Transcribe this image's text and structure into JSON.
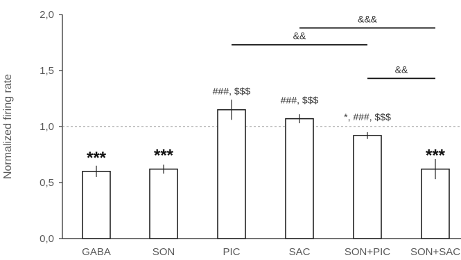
{
  "chart_data": {
    "type": "bar",
    "title": "",
    "xlabel": "",
    "ylabel": "Normalized firing rate",
    "ylim": [
      0,
      2
    ],
    "yticks": [
      0,
      0.5,
      1,
      1.5,
      2
    ],
    "ytick_labels": [
      "0,0",
      "0,5",
      "1,0",
      "1,5",
      "2,0"
    ],
    "categories": [
      "GABA",
      "SON",
      "PIC",
      "SAC",
      "SON+PIC",
      "SON+SAC"
    ],
    "values": [
      0.6,
      0.62,
      1.15,
      1.07,
      0.92,
      0.62
    ],
    "errors": [
      0.05,
      0.04,
      0.09,
      0.04,
      0.03,
      0.09
    ],
    "reference_line": 1.0,
    "grid": false,
    "legend": "none",
    "significance_labels": [
      "***",
      "***",
      "###, $$$",
      "###, $$$",
      "*, ###, $$$",
      "***"
    ],
    "comparisons": [
      {
        "from": "PIC",
        "to": "SON+PIC",
        "label": "&&",
        "level": 1.73
      },
      {
        "from": "SAC",
        "to": "SON+SAC",
        "label": "&&&",
        "level": 1.88
      },
      {
        "from": "SON+PIC",
        "to": "SON+SAC",
        "label": "&&",
        "level": 1.43
      }
    ],
    "colors": {
      "bar_fill": "#ffffff",
      "bar_stroke": "#222222",
      "axis": "#222222",
      "text": "#595959",
      "reference": "#8c8c8c"
    }
  }
}
